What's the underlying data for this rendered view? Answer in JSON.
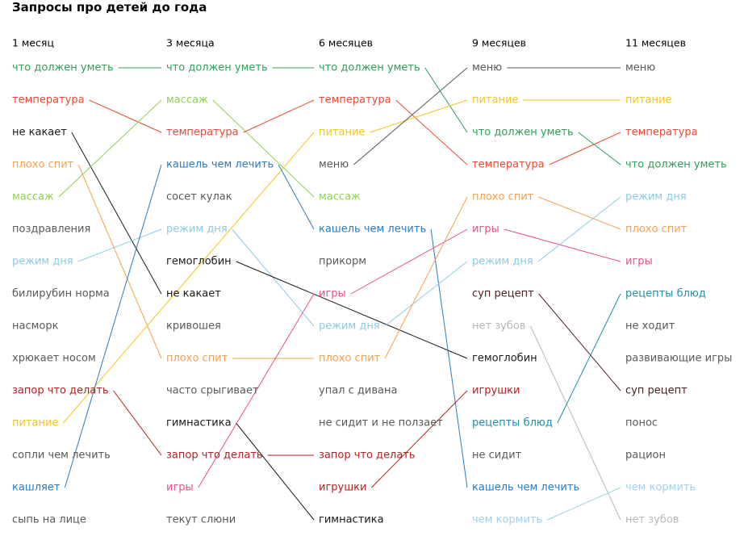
{
  "title": "Запросы про детей до года",
  "chart_data": {
    "type": "bump",
    "colors": {
      "green": "#2da05a",
      "red": "#e84a35",
      "black": "#1a1a1a",
      "orange": "#f6a04d",
      "lime": "#8fd14f",
      "gray": "#595959",
      "lightblue": "#8ecae6",
      "blue": "#2a7bc0",
      "darkred": "#b22222",
      "yellow": "#f5c518",
      "pink": "#e94e8a",
      "lightgray": "#b8b8b8",
      "teal": "#1f8fa6",
      "darkbrown": "#4a1f1f",
      "paleblue": "#a6cfe6"
    },
    "columns": [
      {
        "label": "1 месяц",
        "items": [
          {
            "text": "что должен уметь",
            "color": "green"
          },
          {
            "text": "температура",
            "color": "red"
          },
          {
            "text": "не какает",
            "color": "black"
          },
          {
            "text": "плохо спит",
            "color": "orange"
          },
          {
            "text": "массаж",
            "color": "lime"
          },
          {
            "text": "поздравления",
            "color": "gray"
          },
          {
            "text": "режим дня",
            "color": "lightblue"
          },
          {
            "text": "билирубин норма",
            "color": "gray"
          },
          {
            "text": "насморк",
            "color": "gray"
          },
          {
            "text": "хрюкает носом",
            "color": "gray"
          },
          {
            "text": "запор что делать",
            "color": "darkred"
          },
          {
            "text": "питание",
            "color": "yellow"
          },
          {
            "text": "сопли чем лечить",
            "color": "gray"
          },
          {
            "text": "кашляет",
            "color": "blue"
          },
          {
            "text": "сыпь на лице",
            "color": "gray"
          }
        ]
      },
      {
        "label": "3 месяца",
        "items": [
          {
            "text": "что должен уметь",
            "color": "green"
          },
          {
            "text": "массаж",
            "color": "lime"
          },
          {
            "text": "температура",
            "color": "red"
          },
          {
            "text": "кашель чем лечить",
            "color": "blue"
          },
          {
            "text": "сосет кулак",
            "color": "gray"
          },
          {
            "text": "режим дня",
            "color": "lightblue"
          },
          {
            "text": "гемоглобин",
            "color": "black"
          },
          {
            "text": "не какает",
            "color": "black"
          },
          {
            "text": "кривошея",
            "color": "gray"
          },
          {
            "text": "плохо спит",
            "color": "orange"
          },
          {
            "text": "часто срыгивает",
            "color": "gray"
          },
          {
            "text": "гимнастика",
            "color": "black"
          },
          {
            "text": "запор что делать",
            "color": "darkred"
          },
          {
            "text": "игры",
            "color": "pink"
          },
          {
            "text": "текут слюни",
            "color": "gray"
          }
        ]
      },
      {
        "label": "6 месяцев",
        "items": [
          {
            "text": "что должен уметь",
            "color": "green"
          },
          {
            "text": "температура",
            "color": "red"
          },
          {
            "text": "питание",
            "color": "yellow"
          },
          {
            "text": "меню",
            "color": "gray"
          },
          {
            "text": "массаж",
            "color": "lime"
          },
          {
            "text": "кашель чем лечить",
            "color": "blue"
          },
          {
            "text": "прикорм",
            "color": "gray"
          },
          {
            "text": "игры",
            "color": "pink"
          },
          {
            "text": "режим дня",
            "color": "lightblue"
          },
          {
            "text": "плохо спит",
            "color": "orange"
          },
          {
            "text": "упал с дивана",
            "color": "gray"
          },
          {
            "text": "не сидит и не ползает",
            "color": "gray"
          },
          {
            "text": "запор что делать",
            "color": "darkred"
          },
          {
            "text": "игрушки",
            "color": "darkred"
          },
          {
            "text": "гимнастика",
            "color": "black"
          }
        ]
      },
      {
        "label": "9 месяцев",
        "items": [
          {
            "text": "меню",
            "color": "gray"
          },
          {
            "text": "питание",
            "color": "yellow"
          },
          {
            "text": "что должен уметь",
            "color": "green"
          },
          {
            "text": "температура",
            "color": "red"
          },
          {
            "text": "плохо спит",
            "color": "orange"
          },
          {
            "text": "игры",
            "color": "pink"
          },
          {
            "text": "режим дня",
            "color": "lightblue"
          },
          {
            "text": "суп рецепт",
            "color": "darkbrown"
          },
          {
            "text": "нет зубов",
            "color": "lightgray"
          },
          {
            "text": "гемоглобин",
            "color": "black"
          },
          {
            "text": "игрушки",
            "color": "darkred"
          },
          {
            "text": "рецепты блюд",
            "color": "teal"
          },
          {
            "text": "не сидит",
            "color": "gray"
          },
          {
            "text": "кашель чем лечить",
            "color": "blue"
          },
          {
            "text": "чем кормить",
            "color": "paleblue"
          }
        ]
      },
      {
        "label": "11 месяцев",
        "items": [
          {
            "text": "меню",
            "color": "gray"
          },
          {
            "text": "питание",
            "color": "yellow"
          },
          {
            "text": "температура",
            "color": "red"
          },
          {
            "text": "что должен уметь",
            "color": "green"
          },
          {
            "text": "режим дня",
            "color": "lightblue"
          },
          {
            "text": "плохо спит",
            "color": "orange"
          },
          {
            "text": "игры",
            "color": "pink"
          },
          {
            "text": "рецепты блюд",
            "color": "teal"
          },
          {
            "text": "не ходит",
            "color": "gray"
          },
          {
            "text": "развивающие игры",
            "color": "gray"
          },
          {
            "text": "суп рецепт",
            "color": "darkbrown"
          },
          {
            "text": "понос",
            "color": "gray"
          },
          {
            "text": "рацион",
            "color": "gray"
          },
          {
            "text": "чем кормить",
            "color": "paleblue"
          },
          {
            "text": "нет зубов",
            "color": "lightgray"
          }
        ]
      }
    ],
    "links": [
      {
        "from": [
          0,
          0
        ],
        "to": [
          1,
          0
        ],
        "color": "green"
      },
      {
        "from": [
          0,
          1
        ],
        "to": [
          1,
          2
        ],
        "color": "red"
      },
      {
        "from": [
          0,
          2
        ],
        "to": [
          1,
          7
        ],
        "color": "black"
      },
      {
        "from": [
          0,
          3
        ],
        "to": [
          1,
          9
        ],
        "color": "orange"
      },
      {
        "from": [
          0,
          4
        ],
        "to": [
          1,
          1
        ],
        "color": "lime"
      },
      {
        "from": [
          0,
          6
        ],
        "to": [
          1,
          5
        ],
        "color": "lightblue"
      },
      {
        "from": [
          0,
          10
        ],
        "to": [
          1,
          12
        ],
        "color": "darkred"
      },
      {
        "from": [
          0,
          11
        ],
        "to": [
          2,
          2
        ],
        "color": "yellow"
      },
      {
        "from": [
          0,
          13
        ],
        "to": [
          1,
          3
        ],
        "color": "blue"
      },
      {
        "from": [
          1,
          0
        ],
        "to": [
          2,
          0
        ],
        "color": "green"
      },
      {
        "from": [
          1,
          1
        ],
        "to": [
          2,
          4
        ],
        "color": "lime"
      },
      {
        "from": [
          1,
          2
        ],
        "to": [
          2,
          1
        ],
        "color": "red"
      },
      {
        "from": [
          1,
          3
        ],
        "to": [
          2,
          5
        ],
        "color": "blue"
      },
      {
        "from": [
          1,
          5
        ],
        "to": [
          2,
          8
        ],
        "color": "lightblue"
      },
      {
        "from": [
          1,
          6
        ],
        "to": [
          3,
          9
        ],
        "color": "black"
      },
      {
        "from": [
          1,
          9
        ],
        "to": [
          2,
          9
        ],
        "color": "orange"
      },
      {
        "from": [
          1,
          11
        ],
        "to": [
          2,
          14
        ],
        "color": "black"
      },
      {
        "from": [
          1,
          12
        ],
        "to": [
          2,
          12
        ],
        "color": "darkred"
      },
      {
        "from": [
          1,
          13
        ],
        "to": [
          2,
          7
        ],
        "color": "pink"
      },
      {
        "from": [
          2,
          0
        ],
        "to": [
          3,
          2
        ],
        "color": "green"
      },
      {
        "from": [
          2,
          1
        ],
        "to": [
          3,
          3
        ],
        "color": "red"
      },
      {
        "from": [
          2,
          2
        ],
        "to": [
          3,
          1
        ],
        "color": "yellow"
      },
      {
        "from": [
          2,
          3
        ],
        "to": [
          3,
          0
        ],
        "color": "gray"
      },
      {
        "from": [
          2,
          5
        ],
        "to": [
          3,
          13
        ],
        "color": "blue"
      },
      {
        "from": [
          2,
          7
        ],
        "to": [
          3,
          5
        ],
        "color": "pink"
      },
      {
        "from": [
          2,
          8
        ],
        "to": [
          3,
          6
        ],
        "color": "lightblue"
      },
      {
        "from": [
          2,
          9
        ],
        "to": [
          3,
          4
        ],
        "color": "orange"
      },
      {
        "from": [
          2,
          13
        ],
        "to": [
          3,
          10
        ],
        "color": "darkred"
      },
      {
        "from": [
          3,
          0
        ],
        "to": [
          4,
          0
        ],
        "color": "gray"
      },
      {
        "from": [
          3,
          1
        ],
        "to": [
          4,
          1
        ],
        "color": "yellow"
      },
      {
        "from": [
          3,
          2
        ],
        "to": [
          4,
          3
        ],
        "color": "green"
      },
      {
        "from": [
          3,
          3
        ],
        "to": [
          4,
          2
        ],
        "color": "red"
      },
      {
        "from": [
          3,
          4
        ],
        "to": [
          4,
          5
        ],
        "color": "orange"
      },
      {
        "from": [
          3,
          5
        ],
        "to": [
          4,
          6
        ],
        "color": "pink"
      },
      {
        "from": [
          3,
          6
        ],
        "to": [
          4,
          4
        ],
        "color": "lightblue"
      },
      {
        "from": [
          3,
          7
        ],
        "to": [
          4,
          10
        ],
        "color": "darkbrown"
      },
      {
        "from": [
          3,
          8
        ],
        "to": [
          4,
          14
        ],
        "color": "lightgray"
      },
      {
        "from": [
          3,
          11
        ],
        "to": [
          4,
          7
        ],
        "color": "teal"
      },
      {
        "from": [
          3,
          14
        ],
        "to": [
          4,
          13
        ],
        "color": "paleblue"
      }
    ]
  }
}
